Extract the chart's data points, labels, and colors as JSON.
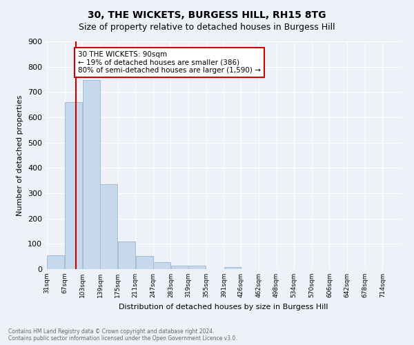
{
  "title1": "30, THE WICKETS, BURGESS HILL, RH15 8TG",
  "title2": "Size of property relative to detached houses in Burgess Hill",
  "xlabel": "Distribution of detached houses by size in Burgess Hill",
  "ylabel": "Number of detached properties",
  "footnote1": "Contains HM Land Registry data © Crown copyright and database right 2024.",
  "footnote2": "Contains public sector information licensed under the Open Government Licence v3.0.",
  "bar_edges": [
    31,
    67,
    103,
    139,
    175,
    211,
    247,
    283,
    319,
    355,
    391,
    426,
    462,
    498,
    534,
    570,
    606,
    642,
    678,
    714,
    750
  ],
  "bar_heights": [
    55,
    660,
    748,
    336,
    110,
    52,
    27,
    14,
    14,
    0,
    8,
    0,
    0,
    0,
    0,
    0,
    0,
    0,
    0,
    0
  ],
  "bar_color": "#c6d9ec",
  "bar_edge_color": "#a0bcd8",
  "property_line_x": 90,
  "annotation_text": "30 THE WICKETS: 90sqm\n← 19% of detached houses are smaller (386)\n80% of semi-detached houses are larger (1,590) →",
  "annotation_box_color": "#ffffff",
  "annotation_box_edge_color": "#cc0000",
  "vline_color": "#cc0000",
  "ylim": [
    0,
    900
  ],
  "yticks": [
    0,
    100,
    200,
    300,
    400,
    500,
    600,
    700,
    800,
    900
  ],
  "background_color": "#eef2f8",
  "plot_background": "#eef2f8",
  "grid_color": "#ffffff",
  "title_fontsize": 10,
  "subtitle_fontsize": 9
}
